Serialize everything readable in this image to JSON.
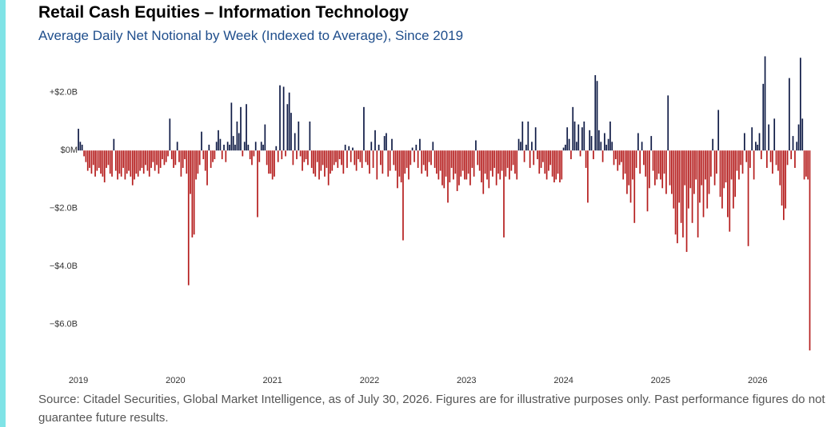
{
  "chart_data": {
    "type": "bar",
    "title": "Retail Cash Equities – Information Technology",
    "subtitle": "Average Daily Net Notional by Week (Indexed to Average), Since 2019",
    "source": "Source: Citadel Securities, Global Market Intelligence, as of July 30, 2026. Figures are for illustrative purposes only. Past performance figures do not guarantee future results.",
    "positive_color": "#0e1a45",
    "negative_color": "#b51d1d",
    "grid": false,
    "xlim": [
      2018.95,
      2026.6
    ],
    "xticks": [
      2019,
      2020,
      2021,
      2022,
      2023,
      2024,
      2025,
      2026
    ],
    "ylim": [
      -7.5,
      3.4
    ],
    "yticks": [
      {
        "value": 2,
        "label": "+$2.0B"
      },
      {
        "value": 0,
        "label": "$0M"
      },
      {
        "value": -2,
        "label": "−$2.0B"
      },
      {
        "value": -4,
        "label": "−$4.0B"
      },
      {
        "value": -6,
        "label": "−$6.0B"
      }
    ],
    "x": [
      2019.0,
      2019.019,
      2019.038,
      2019.058,
      2019.077,
      2019.096,
      2019.115,
      2019.135,
      2019.154,
      2019.173,
      2019.192,
      2019.212,
      2019.231,
      2019.25,
      2019.269,
      2019.288,
      2019.308,
      2019.327,
      2019.346,
      2019.365,
      2019.385,
      2019.404,
      2019.423,
      2019.442,
      2019.462,
      2019.481,
      2019.5,
      2019.519,
      2019.538,
      2019.558,
      2019.577,
      2019.596,
      2019.615,
      2019.635,
      2019.654,
      2019.673,
      2019.692,
      2019.712,
      2019.731,
      2019.75,
      2019.769,
      2019.788,
      2019.808,
      2019.827,
      2019.846,
      2019.865,
      2019.885,
      2019.904,
      2019.923,
      2019.942,
      2019.962,
      2019.981,
      2020.0,
      2020.019,
      2020.038,
      2020.058,
      2020.077,
      2020.096,
      2020.115,
      2020.135,
      2020.154,
      2020.173,
      2020.192,
      2020.212,
      2020.231,
      2020.25,
      2020.269,
      2020.288,
      2020.308,
      2020.327,
      2020.346,
      2020.365,
      2020.385,
      2020.404,
      2020.423,
      2020.442,
      2020.462,
      2020.481,
      2020.5,
      2020.519,
      2020.538,
      2020.558,
      2020.577,
      2020.596,
      2020.615,
      2020.635,
      2020.654,
      2020.673,
      2020.692,
      2020.712,
      2020.731,
      2020.75,
      2020.769,
      2020.788,
      2020.808,
      2020.827,
      2020.846,
      2020.865,
      2020.885,
      2020.904,
      2020.923,
      2020.942,
      2020.962,
      2020.981,
      2021.0,
      2021.019,
      2021.038,
      2021.058,
      2021.077,
      2021.096,
      2021.115,
      2021.135,
      2021.154,
      2021.173,
      2021.192,
      2021.212,
      2021.231,
      2021.25,
      2021.269,
      2021.288,
      2021.308,
      2021.327,
      2021.346,
      2021.365,
      2021.385,
      2021.404,
      2021.423,
      2021.442,
      2021.462,
      2021.481,
      2021.5,
      2021.519,
      2021.538,
      2021.558,
      2021.577,
      2021.596,
      2021.615,
      2021.635,
      2021.654,
      2021.673,
      2021.692,
      2021.712,
      2021.731,
      2021.75,
      2021.769,
      2021.788,
      2021.808,
      2021.827,
      2021.846,
      2021.865,
      2021.885,
      2021.904,
      2021.923,
      2021.942,
      2021.962,
      2021.981,
      2022.0,
      2022.019,
      2022.038,
      2022.058,
      2022.077,
      2022.096,
      2022.115,
      2022.135,
      2022.154,
      2022.173,
      2022.192,
      2022.212,
      2022.231,
      2022.25,
      2022.269,
      2022.288,
      2022.308,
      2022.327,
      2022.346,
      2022.365,
      2022.385,
      2022.404,
      2022.423,
      2022.442,
      2022.462,
      2022.481,
      2022.5,
      2022.519,
      2022.538,
      2022.558,
      2022.577,
      2022.596,
      2022.615,
      2022.635,
      2022.654,
      2022.673,
      2022.692,
      2022.712,
      2022.731,
      2022.75,
      2022.769,
      2022.788,
      2022.808,
      2022.827,
      2022.846,
      2022.865,
      2022.885,
      2022.904,
      2022.923,
      2022.942,
      2022.962,
      2022.981,
      2023.0,
      2023.019,
      2023.038,
      2023.058,
      2023.077,
      2023.096,
      2023.115,
      2023.135,
      2023.154,
      2023.173,
      2023.192,
      2023.212,
      2023.231,
      2023.25,
      2023.269,
      2023.288,
      2023.308,
      2023.327,
      2023.346,
      2023.365,
      2023.385,
      2023.404,
      2023.423,
      2023.442,
      2023.462,
      2023.481,
      2023.5,
      2023.519,
      2023.538,
      2023.558,
      2023.577,
      2023.596,
      2023.615,
      2023.635,
      2023.654,
      2023.673,
      2023.692,
      2023.712,
      2023.731,
      2023.75,
      2023.769,
      2023.788,
      2023.808,
      2023.827,
      2023.846,
      2023.865,
      2023.885,
      2023.904,
      2023.923,
      2023.942,
      2023.962,
      2023.981,
      2024.0,
      2024.019,
      2024.038,
      2024.058,
      2024.077,
      2024.096,
      2024.115,
      2024.135,
      2024.154,
      2024.173,
      2024.192,
      2024.212,
      2024.231,
      2024.25,
      2024.269,
      2024.288,
      2024.308,
      2024.327,
      2024.346,
      2024.365,
      2024.385,
      2024.404,
      2024.423,
      2024.442,
      2024.462,
      2024.481,
      2024.5,
      2024.519,
      2024.538,
      2024.558,
      2024.577,
      2024.596,
      2024.615,
      2024.635,
      2024.654,
      2024.673,
      2024.692,
      2024.712,
      2024.731,
      2024.75,
      2024.769,
      2024.788,
      2024.808,
      2024.827,
      2024.846,
      2024.865,
      2024.885,
      2024.904,
      2024.923,
      2024.942,
      2024.962,
      2024.981,
      2025.0,
      2025.019,
      2025.038,
      2025.058,
      2025.077,
      2025.096,
      2025.115,
      2025.135,
      2025.154,
      2025.173,
      2025.192,
      2025.212,
      2025.231,
      2025.25,
      2025.269,
      2025.288,
      2025.308,
      2025.327,
      2025.346,
      2025.365,
      2025.385,
      2025.404,
      2025.423,
      2025.442,
      2025.462,
      2025.481,
      2025.5,
      2025.519,
      2025.538,
      2025.558,
      2025.577,
      2025.596,
      2025.615,
      2025.635,
      2025.654,
      2025.673,
      2025.692,
      2025.712,
      2025.731,
      2025.75,
      2025.769,
      2025.788,
      2025.808,
      2025.827,
      2025.846,
      2025.865,
      2025.885,
      2025.904,
      2025.923,
      2025.942,
      2025.962,
      2025.981,
      2026.0,
      2026.019,
      2026.038,
      2026.058,
      2026.077,
      2026.096,
      2026.115,
      2026.135,
      2026.154,
      2026.173,
      2026.192,
      2026.212,
      2026.231,
      2026.25,
      2026.269,
      2026.288,
      2026.308,
      2026.327,
      2026.346,
      2026.365,
      2026.385,
      2026.404,
      2026.423,
      2026.442,
      2026.462,
      2026.481,
      2026.5,
      2026.519,
      2026.538
    ],
    "values": [
      0.75,
      0.3,
      0.2,
      -0.2,
      -0.4,
      -0.7,
      -0.6,
      -0.8,
      -0.5,
      -0.9,
      -0.7,
      -0.6,
      -0.8,
      -0.9,
      -1.1,
      -0.6,
      -0.5,
      -0.8,
      -0.9,
      0.4,
      -0.7,
      -1.0,
      -0.8,
      -0.9,
      -0.6,
      -1.0,
      -0.8,
      -0.7,
      -0.9,
      -1.2,
      -1.0,
      -0.8,
      -0.9,
      -0.7,
      -0.6,
      -0.8,
      -0.5,
      -0.7,
      -0.9,
      -0.6,
      -0.4,
      -0.7,
      -0.5,
      -0.8,
      -0.6,
      -0.3,
      -0.5,
      -0.4,
      -0.2,
      1.1,
      -0.3,
      -0.6,
      -0.5,
      0.3,
      -0.4,
      -0.9,
      -0.6,
      -0.3,
      -0.8,
      -4.65,
      -1.5,
      -3.0,
      -2.9,
      -1.0,
      -0.8,
      -0.5,
      0.65,
      -0.3,
      -0.7,
      -1.2,
      0.2,
      -0.6,
      -0.4,
      -0.3,
      0.3,
      0.7,
      0.4,
      -0.3,
      0.2,
      -0.4,
      0.3,
      0.2,
      1.65,
      0.5,
      0.2,
      1.0,
      0.6,
      1.5,
      -0.2,
      0.3,
      1.6,
      0.2,
      -0.3,
      -0.5,
      -0.2,
      0.3,
      -2.3,
      -0.4,
      0.3,
      0.2,
      0.9,
      -0.5,
      -0.8,
      -0.8,
      -1.0,
      -0.9,
      0.15,
      -0.4,
      2.25,
      -0.3,
      2.2,
      -0.2,
      1.6,
      2.0,
      1.3,
      -0.5,
      0.6,
      -0.3,
      1.0,
      -0.2,
      -0.7,
      -0.4,
      -0.3,
      -0.5,
      1.0,
      -0.6,
      -0.8,
      -0.9,
      -0.4,
      -1.0,
      -0.7,
      -0.5,
      -0.9,
      -0.6,
      -1.2,
      -0.8,
      -0.7,
      -0.5,
      -0.4,
      -0.6,
      -0.3,
      -0.5,
      -0.8,
      0.2,
      -0.6,
      0.15,
      -0.4,
      0.1,
      -0.5,
      -0.7,
      -0.3,
      -0.4,
      -0.6,
      1.5,
      -0.4,
      -0.5,
      -0.8,
      0.3,
      -0.6,
      0.7,
      -1.0,
      0.2,
      -0.5,
      -0.8,
      0.5,
      0.6,
      -0.9,
      -0.7,
      0.4,
      -0.5,
      -0.7,
      -1.3,
      -0.9,
      -1.1,
      -3.1,
      -0.8,
      -0.6,
      -1.0,
      -0.5,
      0.1,
      -0.4,
      0.2,
      -0.6,
      0.4,
      -0.8,
      -0.5,
      -0.7,
      -0.9,
      -0.4,
      -0.5,
      0.3,
      -0.6,
      -0.8,
      -1.0,
      -0.7,
      -1.2,
      -1.3,
      -0.9,
      -1.8,
      -1.1,
      -0.6,
      -1.0,
      -0.8,
      -1.4,
      -1.2,
      -0.9,
      -0.7,
      -1.0,
      -1.0,
      -0.8,
      -1.2,
      -0.6,
      -0.9,
      0.35,
      -0.5,
      -0.7,
      -1.1,
      -1.5,
      -0.8,
      -1.0,
      -1.3,
      -0.7,
      -0.9,
      -0.6,
      -1.2,
      -0.8,
      -1.0,
      -0.7,
      -3.0,
      -0.9,
      -0.6,
      -1.0,
      -0.7,
      -0.5,
      -0.8,
      -1.0,
      0.4,
      0.3,
      1.0,
      -0.4,
      0.2,
      1.0,
      -0.6,
      0.3,
      -0.5,
      0.8,
      -0.3,
      -0.8,
      -0.6,
      -0.4,
      -0.8,
      -1.0,
      -0.7,
      -0.5,
      -0.9,
      -1.1,
      -1.0,
      -0.8,
      -1.1,
      -1.0,
      0.1,
      0.2,
      0.8,
      0.4,
      -0.3,
      1.5,
      1.0,
      0.3,
      0.9,
      -0.2,
      0.8,
      1.0,
      -0.6,
      -1.8,
      0.7,
      0.5,
      -0.3,
      2.6,
      2.4,
      0.7,
      0.3,
      -0.4,
      0.6,
      0.2,
      0.4,
      1.0,
      0.3,
      -0.5,
      -0.3,
      -0.7,
      -0.5,
      -0.4,
      -1.0,
      -0.8,
      -1.5,
      -1.2,
      -1.8,
      -1.0,
      -2.5,
      -0.6,
      0.6,
      -0.8,
      0.3,
      -0.5,
      -0.9,
      -2.1,
      -1.3,
      0.5,
      -0.7,
      -1.2,
      -1.0,
      -0.8,
      -1.0,
      -1.3,
      -0.8,
      -1.5,
      1.9,
      -1.2,
      -1.5,
      -2.0,
      -2.9,
      -3.2,
      -1.8,
      -2.5,
      -3.0,
      -1.2,
      -3.5,
      -2.0,
      -1.3,
      -2.5,
      -1.5,
      -1.0,
      -3.0,
      -1.8,
      -1.2,
      -2.3,
      -1.0,
      -2.0,
      -1.5,
      -0.9,
      0.4,
      -1.2,
      -0.8,
      1.4,
      -1.6,
      -2.0,
      -1.3,
      -1.1,
      -2.3,
      -2.8,
      -1.0,
      -2.0,
      -1.6,
      -0.7,
      -1.0,
      -0.5,
      -0.8,
      0.6,
      -0.4,
      -3.3,
      -0.6,
      0.8,
      -1.0,
      0.3,
      0.2,
      0.6,
      -0.3,
      2.3,
      3.25,
      -0.6,
      0.9,
      -0.4,
      -0.8,
      1.1,
      -0.5,
      -0.7,
      -1.2,
      -1.9,
      -2.4,
      -2.0,
      -0.5,
      2.5,
      -0.3,
      0.5,
      -0.6,
      0.3,
      0.9,
      3.2,
      1.1,
      -1.0,
      -0.9,
      -1.0,
      -6.9
    ]
  }
}
